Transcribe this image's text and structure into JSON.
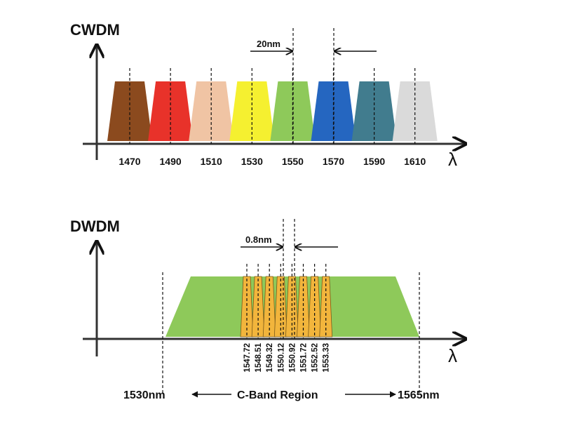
{
  "cwdm": {
    "title": "CWDM",
    "spacing_label": "20nm",
    "axis_symbol": "λ",
    "channels": [
      {
        "wavelength": "1470",
        "color": "#8B4A1E"
      },
      {
        "wavelength": "1490",
        "color": "#E8322A"
      },
      {
        "wavelength": "1510",
        "color": "#F0C4A4"
      },
      {
        "wavelength": "1530",
        "color": "#F5F030"
      },
      {
        "wavelength": "1550",
        "color": "#8EC95A"
      },
      {
        "wavelength": "1570",
        "color": "#2566C0"
      },
      {
        "wavelength": "1590",
        "color": "#417C8E"
      },
      {
        "wavelength": "1610",
        "color": "#DADADA"
      }
    ]
  },
  "dwdm": {
    "title": "DWDM",
    "spacing_label": "0.8nm",
    "axis_symbol": "λ",
    "band_color": "#8EC95A",
    "channel_color": "#F2B53C",
    "channels": [
      "1547.72",
      "1548.51",
      "1549.32",
      "1550.12",
      "1550.92",
      "1551.72",
      "1552.52",
      "1553.33"
    ],
    "band_start": "1530nm",
    "band_end": "1565nm",
    "region_label": "C-Band Region"
  }
}
